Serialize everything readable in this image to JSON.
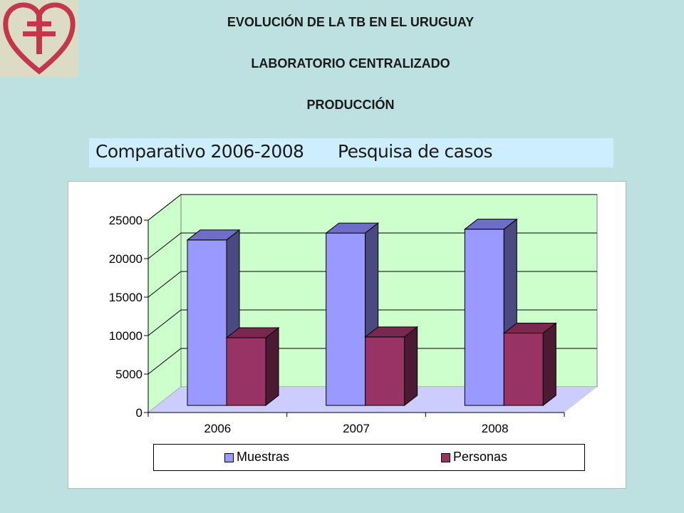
{
  "header": {
    "line1": "EVOLUCIÓN DE LA TB EN EL URUGUAY",
    "line2": "LABORATORIO CENTRALIZADO",
    "line3": "PRODUCCIÓN",
    "logo_icon": "cross-of-lorraine-heart-icon"
  },
  "banner": {
    "left_text": "Comparativo 2006-2008",
    "right_text": "Pesquisa de casos"
  },
  "chart_data": {
    "type": "bar",
    "categories": [
      "2006",
      "2007",
      "2008"
    ],
    "series": [
      {
        "name": "Muestras",
        "values": [
          21500,
          22400,
          22900
        ],
        "color": "#9999ff",
        "side_color": "#4a4a80",
        "top_color": "#6e6ec8"
      },
      {
        "name": "Personas",
        "values": [
          8800,
          8900,
          9400
        ],
        "color": "#993366",
        "side_color": "#4c1a33",
        "top_color": "#7a2850"
      }
    ],
    "yticks": [
      "0",
      "5000",
      "10000",
      "15000",
      "20000",
      "25000"
    ],
    "ylim": [
      0,
      25000
    ],
    "grid": true,
    "legend_position": "bottom",
    "wall_color": "#ccffcc",
    "floor_color": "#ccccff"
  }
}
